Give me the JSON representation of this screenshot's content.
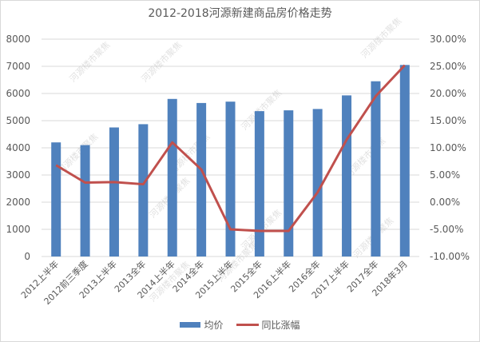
{
  "chart_data": {
    "type": "bar+line",
    "title": "2012-2018河源新建商品房价格走势",
    "categories": [
      "2012上半年",
      "2012前三季度",
      "2013上半年",
      "2013全年",
      "2014上半年",
      "2014全年",
      "2015上半年",
      "2015全年",
      "2016上半年",
      "2016全年",
      "2017上半年",
      "2017全年",
      "2018年3月"
    ],
    "series": [
      {
        "name": "均价",
        "type": "bar",
        "axis": "left",
        "color": "#4f81bd",
        "values": [
          4200,
          4100,
          4750,
          4870,
          5800,
          5650,
          5700,
          5350,
          5380,
          5430,
          5930,
          6450,
          7050
        ]
      },
      {
        "name": "同比涨幅",
        "type": "line",
        "axis": "right",
        "color": "#c0504d",
        "values": [
          6.8,
          3.6,
          3.7,
          3.3,
          11.0,
          6.0,
          -5.0,
          -5.3,
          -5.3,
          1.8,
          11.5,
          19.5,
          25.2
        ]
      }
    ],
    "left_axis": {
      "ylim": [
        0,
        8000
      ],
      "ticks": [
        "0",
        "1000",
        "2000",
        "3000",
        "4000",
        "5000",
        "6000",
        "7000",
        "8000"
      ]
    },
    "right_axis": {
      "ylim": [
        -10,
        30
      ],
      "ticks": [
        "-10.00%",
        "-5.00%",
        "0.00%",
        "5.00%",
        "10.00%",
        "15.00%",
        "20.00%",
        "25.00%",
        "30.00%"
      ]
    },
    "xlabel": "",
    "ylabel": "",
    "grid": true,
    "legend_position": "bottom"
  },
  "legend": {
    "bar_label": "均价",
    "line_label": "同比涨幅"
  },
  "colors": {
    "bar": "#4f81bd",
    "line": "#c0504d",
    "grid": "#d9d9d9",
    "text": "#595959"
  },
  "watermark": "河源楼市聚焦"
}
